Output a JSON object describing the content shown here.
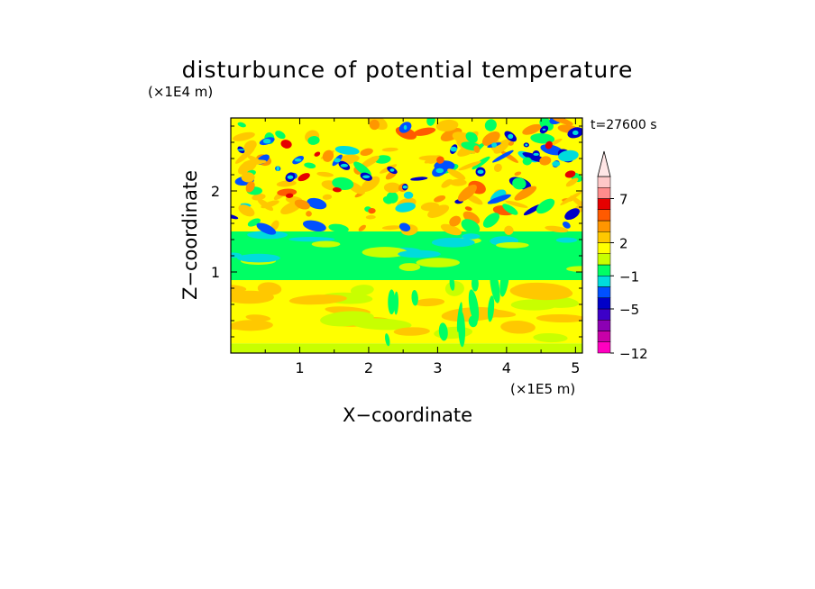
{
  "chart_data": {
    "type": "heatmap",
    "title": "disturbunce of potential temperature",
    "time_label": "t=27600 s",
    "xlabel": "X−coordinate",
    "ylabel": "Z−coordinate",
    "x_unit": "(×1E5 m)",
    "y_unit": "(×1E4 m)",
    "xlim": [
      0,
      5.1
    ],
    "ylim": [
      0,
      2.9
    ],
    "x_ticks": [
      1,
      2,
      3,
      4,
      5
    ],
    "y_ticks": [
      1,
      2
    ],
    "x_tick_labels": [
      "1",
      "2",
      "3",
      "4",
      "5"
    ],
    "y_tick_labels": [
      "1",
      "2"
    ],
    "colorbar": {
      "labels": [
        "−12",
        "−5",
        "−1",
        "2",
        "7"
      ],
      "label_values": [
        -12,
        -5,
        -1,
        2,
        7
      ],
      "colors": [
        "#ff00c0",
        "#c800a8",
        "#8c00b4",
        "#3c00c8",
        "#0000c8",
        "#0050ff",
        "#00dcdc",
        "#00ff64",
        "#c8ff00",
        "#ffff00",
        "#ffc800",
        "#ff9600",
        "#ff5a00",
        "#e60000",
        "#ff8c8c",
        "#ffc8c8"
      ],
      "extend": "max"
    },
    "bands": [
      {
        "z": [
          0.0,
          0.12
        ],
        "level": "yellow-green"
      },
      {
        "z": [
          0.12,
          0.9
        ],
        "level": "yellow-orange"
      },
      {
        "z": [
          0.9,
          1.25
        ],
        "level": "green"
      },
      {
        "z": [
          1.25,
          1.5
        ],
        "level": "green-cyan"
      },
      {
        "z": [
          1.5,
          2.9
        ],
        "level": "mixed"
      }
    ]
  }
}
